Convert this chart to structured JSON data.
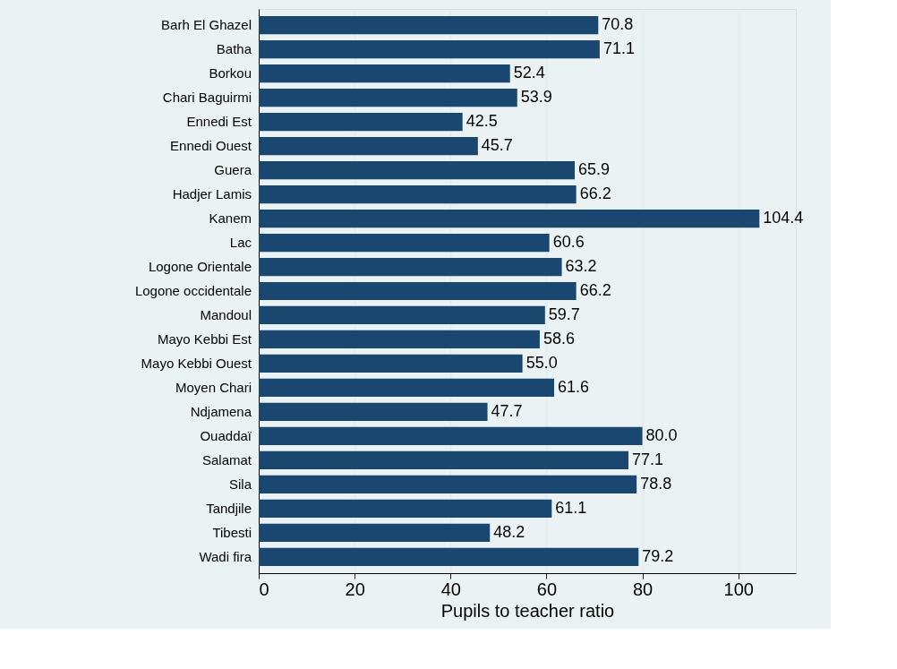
{
  "chart_data": {
    "type": "bar",
    "orientation": "horizontal",
    "xlabel": "Pupils to teacher ratio",
    "categories": [
      "Barh El Ghazel",
      "Batha",
      "Borkou",
      "Chari Baguirmi",
      "Ennedi Est",
      "Ennedi Ouest",
      "Guera",
      "Hadjer Lamis",
      "Kanem",
      "Lac",
      "Logone Orientale",
      "Logone occidentale",
      "Mandoul",
      "Mayo Kebbi Est",
      "Mayo Kebbi Ouest",
      "Moyen Chari",
      "Ndjamena",
      "Ouaddaï",
      "Salamat",
      "Sila",
      "Tandjile",
      "Tibesti",
      "Wadi fira"
    ],
    "values": [
      70.8,
      71.1,
      52.4,
      53.9,
      42.5,
      45.7,
      65.9,
      66.2,
      104.4,
      60.6,
      63.2,
      66.2,
      59.7,
      58.6,
      55.0,
      61.6,
      47.7,
      80.0,
      77.1,
      78.8,
      61.1,
      48.2,
      79.2
    ],
    "value_labels": [
      "70.8",
      "71.1",
      "52.4",
      "53.9",
      "42.5",
      "45.7",
      "65.9",
      "66.2",
      "104.4",
      "60.6",
      "63.2",
      "66.2",
      "59.7",
      "58.6",
      "55.0",
      "61.6",
      "47.7",
      "80.0",
      "77.1",
      "78.8",
      "61.1",
      "48.2",
      "79.2"
    ],
    "color": "#1a476f",
    "xlim": [
      0,
      112
    ],
    "xticks": [
      0,
      20,
      40,
      60,
      80,
      100
    ],
    "grid": "x"
  }
}
